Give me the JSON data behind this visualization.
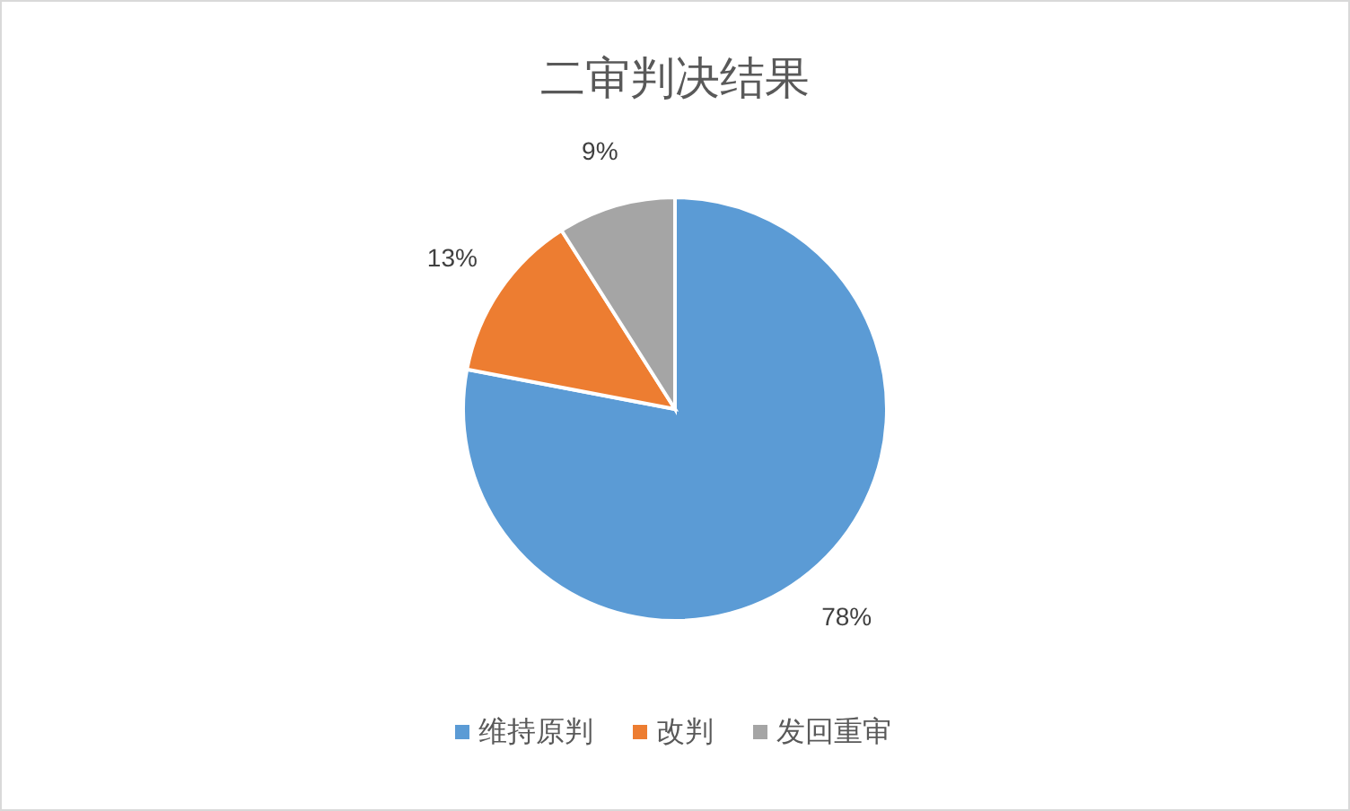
{
  "chart_data": {
    "type": "pie",
    "title": "二审判决结果",
    "categories": [
      "维持原判",
      "改判",
      "发回重审"
    ],
    "values": [
      78,
      13,
      9
    ],
    "colors": [
      "#5b9bd5",
      "#ed7d31",
      "#a5a5a5"
    ],
    "value_labels": [
      "78%",
      "13%",
      "9%"
    ],
    "legend": "bottom"
  }
}
